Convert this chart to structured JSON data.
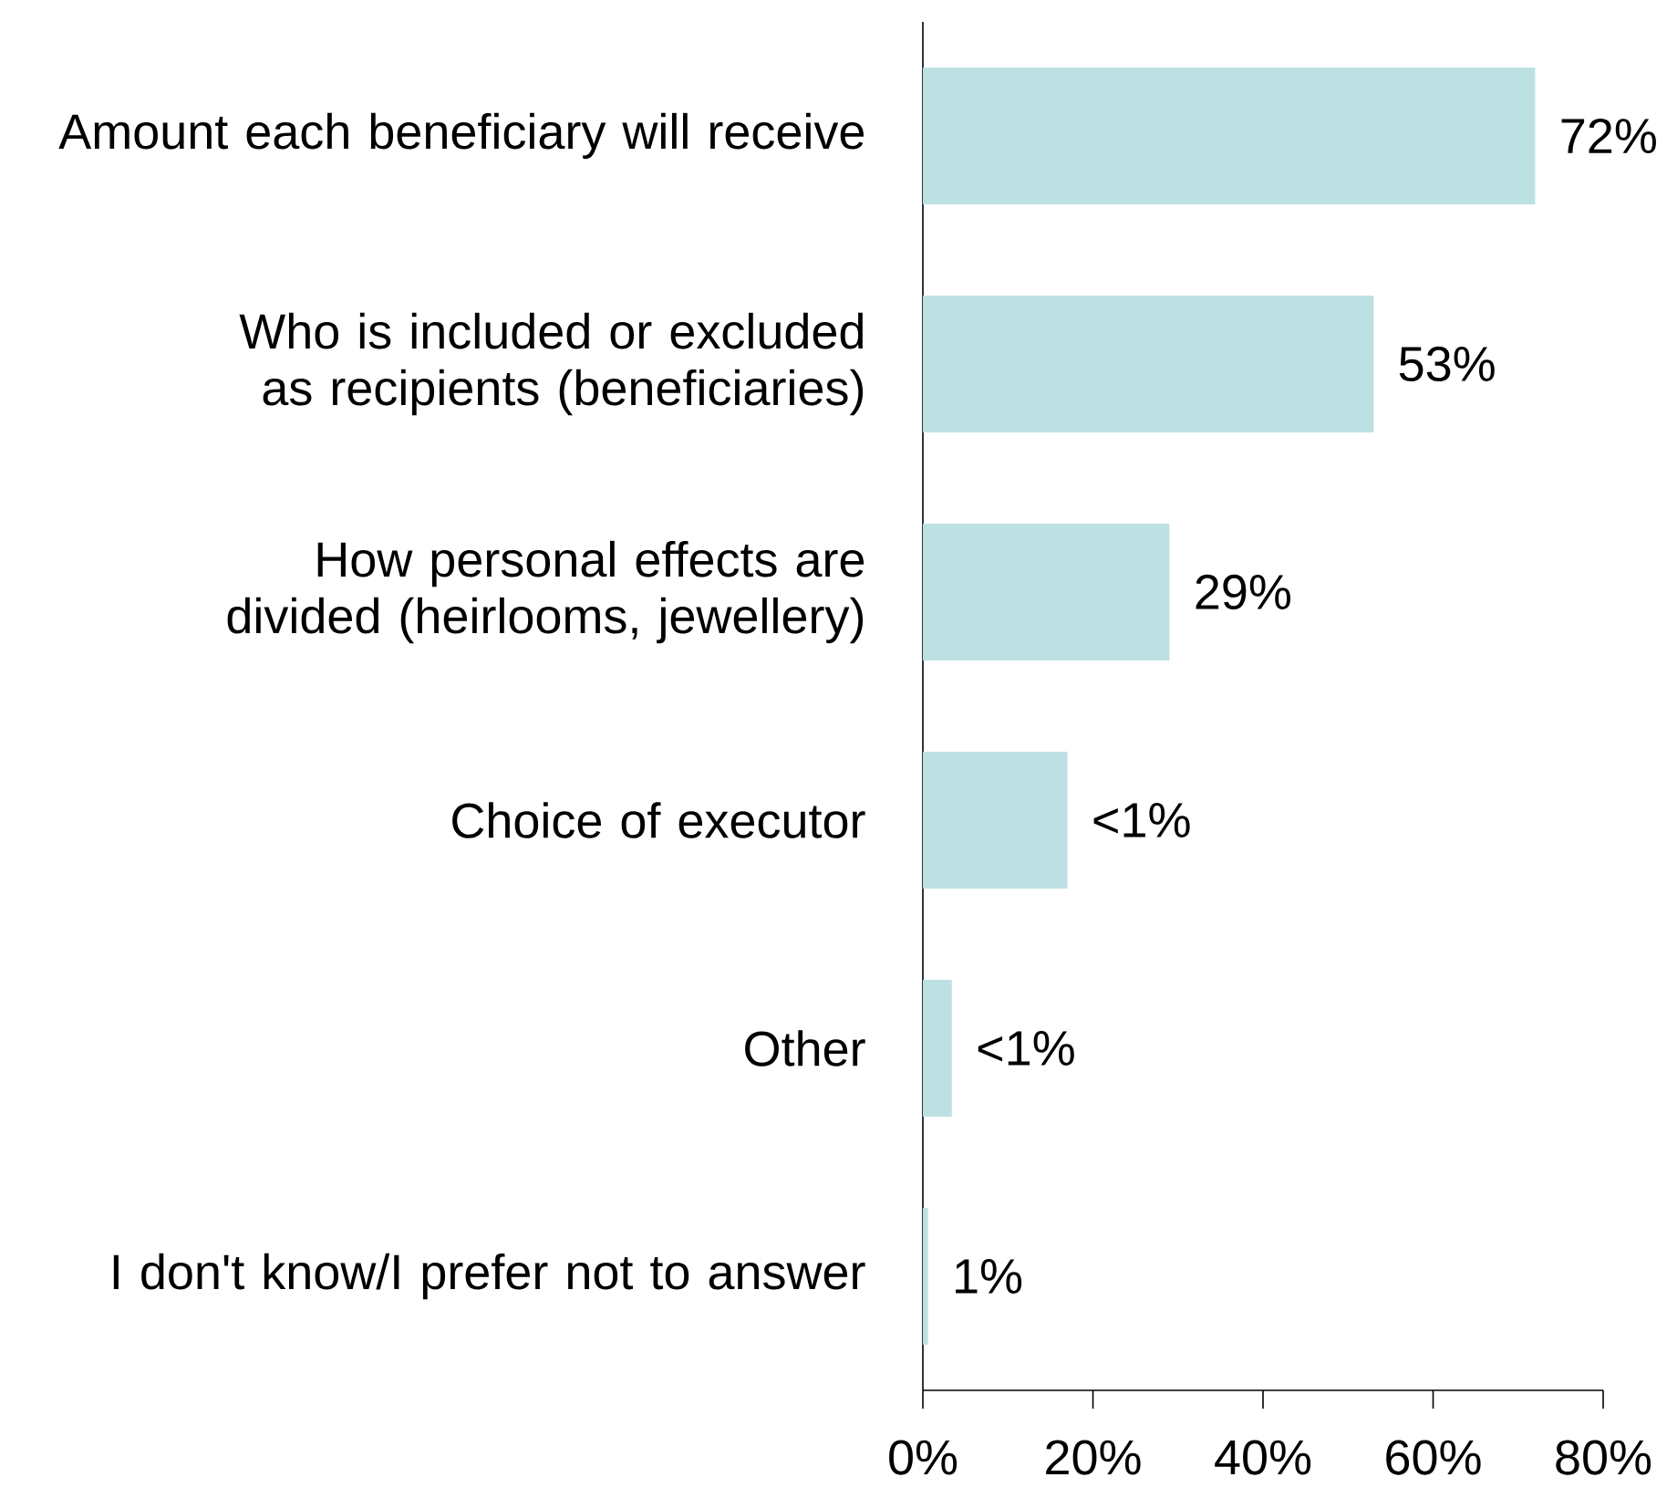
{
  "chart_data": {
    "type": "bar",
    "orientation": "horizontal",
    "categories": [
      "Amount each beneficiary will receive",
      "Who is included or excluded as recipients (beneficiaries)",
      "How personal effects are divided (heirlooms, jewellery)",
      "Choice of executor",
      "Other",
      "I don't know/I prefer not to answer"
    ],
    "values": [
      72,
      53,
      29,
      17,
      3.4,
      0.6
    ],
    "value_labels": [
      "72%",
      "53%",
      "29%",
      "<1%",
      "<1%",
      "1%"
    ],
    "color": "#bde0e2",
    "xlim": [
      0,
      80
    ],
    "xticks": [
      {
        "value": 0,
        "label": "0%"
      },
      {
        "value": 20,
        "label": "20%"
      },
      {
        "value": 40,
        "label": "40%"
      },
      {
        "value": 60,
        "label": "60%"
      },
      {
        "value": 80,
        "label": "80%"
      }
    ],
    "grid": false
  }
}
